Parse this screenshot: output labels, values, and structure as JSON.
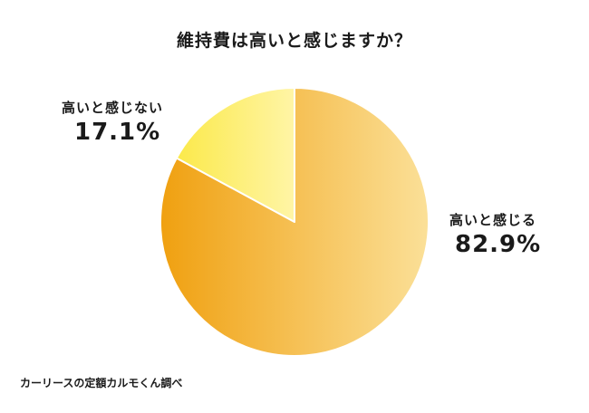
{
  "chart_data": {
    "type": "pie",
    "title": "維持費は高いと感じますか？",
    "categories": [
      "高いと感じる",
      "高いと感じない"
    ],
    "values": [
      82.9,
      17.1
    ],
    "value_labels": [
      "82.9%",
      "17.1%"
    ],
    "start_angle": "12 o'clock",
    "direction": "clockwise",
    "legend": "none",
    "colors": {
      "slice_0_gradient": [
        "#f0a010",
        "#fbe098"
      ],
      "slice_1_gradient": [
        "#fbe94a",
        "#fff5a6"
      ],
      "slice_border": "#ffffff"
    }
  },
  "source": "カーリースの定額カルモくん調べ"
}
